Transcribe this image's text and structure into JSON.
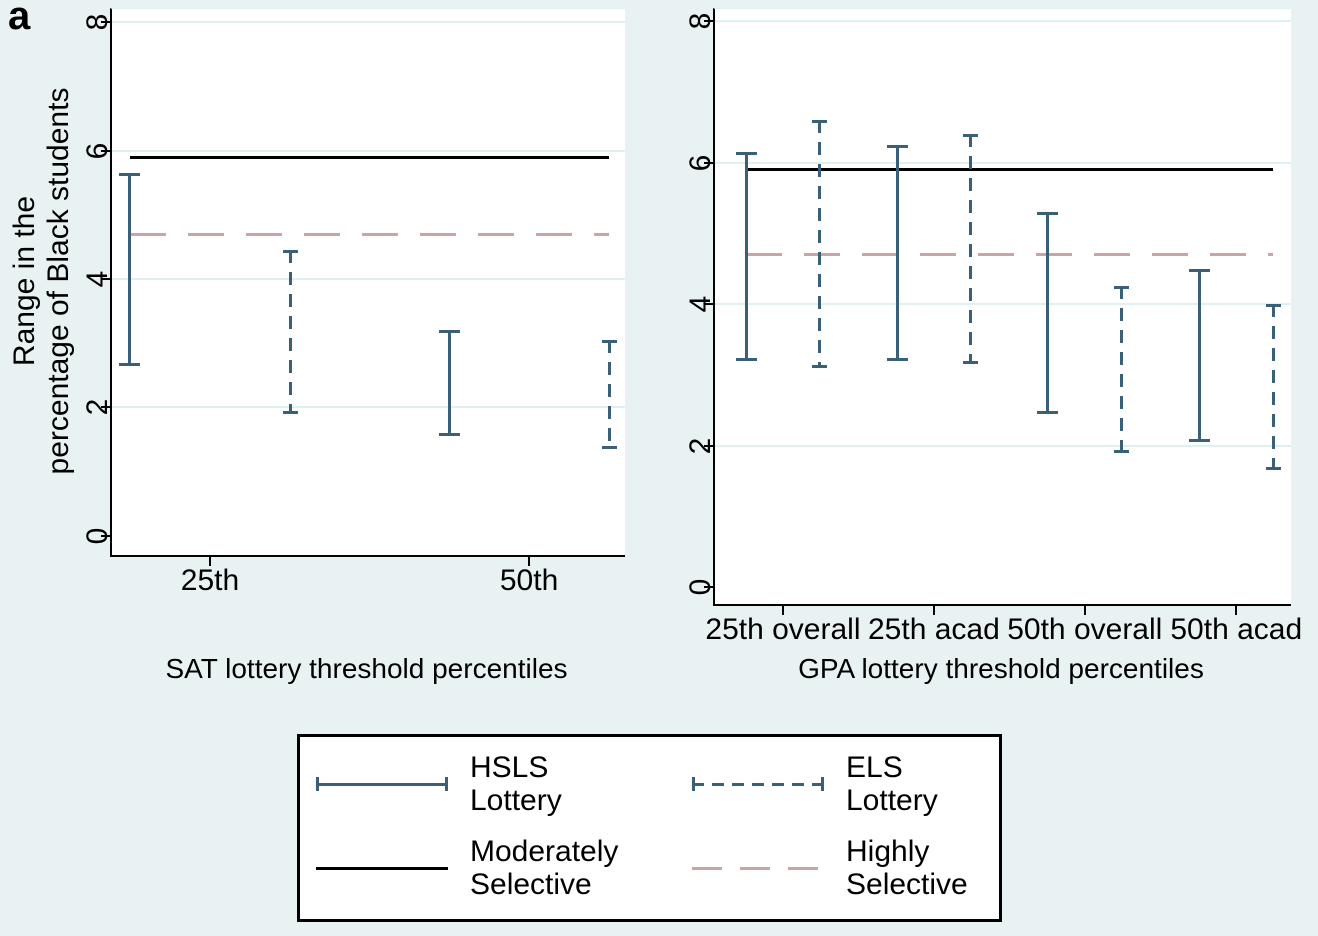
{
  "panel_label": "a",
  "y_axis_title_lines": [
    "Range in the",
    "percentage of Black students"
  ],
  "colors": {
    "background": "#e9f2f2",
    "plot": "#ffffff",
    "gridline": "#dff0f0",
    "axis": "#000000",
    "text": "#000000",
    "lottery": "#3a6078",
    "moderately": "#000000",
    "highly": "#c9a5a5"
  },
  "legend": {
    "position": "bottom center, boxed, 2 columns x 2 rows",
    "items": [
      {
        "label_lines": [
          "HSLS",
          "Lottery"
        ],
        "style": "capped-solid"
      },
      {
        "label_lines": [
          "ELS",
          "Lottery"
        ],
        "style": "capped-dashed"
      },
      {
        "label_lines": [
          "Moderately",
          "Selective"
        ],
        "style": "solid"
      },
      {
        "label_lines": [
          "Highly",
          "Selective"
        ],
        "style": "dashed"
      }
    ]
  },
  "chart_data": [
    {
      "type": "error-bar range plot (vertical low-high bars with caps)",
      "panel": "left",
      "title": "SAT lottery threshold percentiles",
      "ylabel": "Range in the percentage of Black students",
      "categories": [
        "25th",
        "50th"
      ],
      "yticks": [
        0,
        2,
        4,
        6,
        8
      ],
      "ylim": [
        0,
        8
      ],
      "grid": "light horizontal gridlines at 2,4,6,8",
      "series": [
        {
          "name": "HSLS Lottery",
          "line_style": "solid",
          "ranges_low_high": [
            [
              2.65,
              5.65
            ],
            [
              1.55,
              3.2
            ]
          ]
        },
        {
          "name": "ELS Lottery",
          "line_style": "dashed",
          "ranges_low_high": [
            [
              1.9,
              4.45
            ],
            [
              1.35,
              3.05
            ]
          ]
        }
      ],
      "ref_lines": [
        {
          "name": "Moderately Selective",
          "value": 5.9,
          "style": "solid-black"
        },
        {
          "name": "Highly Selective",
          "value": 4.7,
          "style": "dashed-pink"
        }
      ]
    },
    {
      "type": "error-bar range plot (vertical low-high bars with caps)",
      "panel": "right",
      "title": "GPA lottery threshold percentiles",
      "ylabel": "Range in the percentage of Black students",
      "categories": [
        "25th overall",
        "25th acad",
        "50th overall",
        "50th acad"
      ],
      "yticks": [
        0,
        2,
        4,
        6,
        8
      ],
      "ylim": [
        0,
        8
      ],
      "grid": "light horizontal gridlines at 2,4,6,8",
      "series": [
        {
          "name": "HSLS Lottery",
          "line_style": "solid",
          "ranges_low_high": [
            [
              3.2,
              6.15
            ],
            [
              3.2,
              6.25
            ],
            [
              2.45,
              5.3
            ],
            [
              2.05,
              4.5
            ]
          ]
        },
        {
          "name": "ELS Lottery",
          "line_style": "dashed",
          "ranges_low_high": [
            [
              3.1,
              6.6
            ],
            [
              3.15,
              6.4
            ],
            [
              1.9,
              4.25
            ],
            [
              1.65,
              4.0
            ]
          ]
        }
      ],
      "ref_lines": [
        {
          "name": "Moderately Selective",
          "value": 5.9,
          "style": "solid-black"
        },
        {
          "name": "Highly Selective",
          "value": 4.7,
          "style": "dashed-pink"
        }
      ]
    }
  ]
}
